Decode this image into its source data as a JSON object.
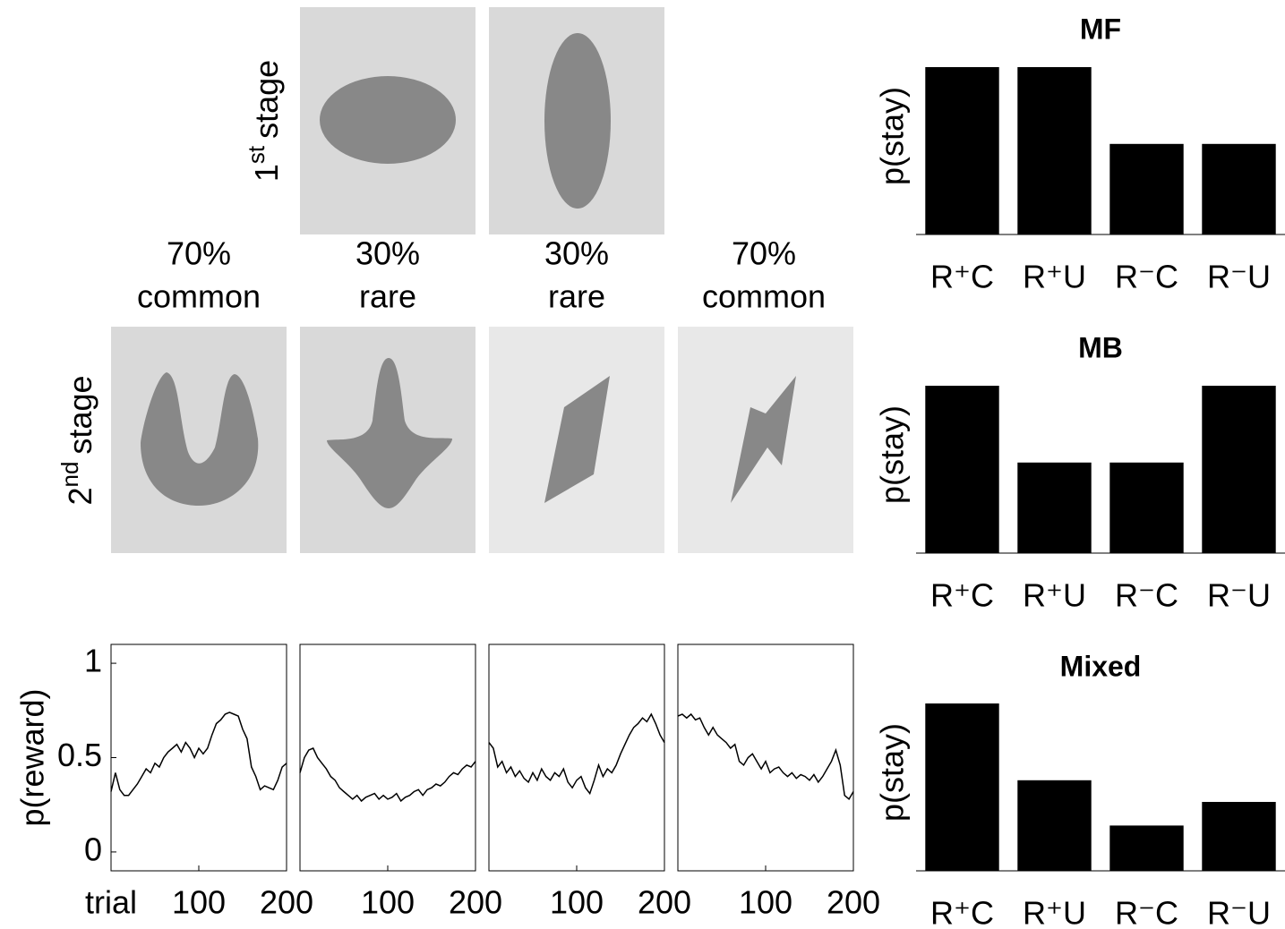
{
  "stages": [
    {
      "base": "1",
      "sup": "st",
      "text": "stage"
    },
    {
      "base": "2",
      "sup": "nd",
      "text": "stage"
    }
  ],
  "transitions": [
    {
      "percent": "70%",
      "label": "common"
    },
    {
      "percent": "30%",
      "label": "rare"
    },
    {
      "percent": "30%",
      "label": "rare"
    },
    {
      "percent": "70%",
      "label": "common"
    }
  ],
  "chart_data": [
    {
      "type": "line",
      "ylabel": "p(reward)",
      "xlabel": "trial",
      "x": [
        0,
        5,
        10,
        15,
        20,
        25,
        30,
        35,
        40,
        45,
        50,
        55,
        60,
        65,
        70,
        75,
        80,
        85,
        90,
        95,
        100,
        105,
        110,
        115,
        120,
        125,
        130,
        135,
        140,
        145,
        150,
        155,
        160,
        165,
        170,
        175,
        180,
        185,
        190,
        195,
        200
      ],
      "series": [
        {
          "color": "#000000",
          "values": [
            0.32,
            0.42,
            0.33,
            0.3,
            0.3,
            0.33,
            0.36,
            0.4,
            0.44,
            0.42,
            0.47,
            0.45,
            0.5,
            0.53,
            0.55,
            0.57,
            0.53,
            0.58,
            0.55,
            0.5,
            0.55,
            0.52,
            0.55,
            0.62,
            0.68,
            0.7,
            0.73,
            0.74,
            0.73,
            0.72,
            0.65,
            0.6,
            0.45,
            0.4,
            0.33,
            0.35,
            0.34,
            0.33,
            0.38,
            0.45,
            0.47
          ]
        }
      ],
      "xlim": [
        0,
        200
      ],
      "xticks": [
        100,
        200
      ],
      "ylim": [
        -0.1,
        1.1
      ],
      "yticks": [
        0,
        0.5,
        1
      ]
    },
    {
      "type": "line",
      "x": [
        0,
        5,
        10,
        15,
        20,
        25,
        30,
        35,
        40,
        45,
        50,
        55,
        60,
        65,
        70,
        75,
        80,
        85,
        90,
        95,
        100,
        105,
        110,
        115,
        120,
        125,
        130,
        135,
        140,
        145,
        150,
        155,
        160,
        165,
        170,
        175,
        180,
        185,
        190,
        195,
        200
      ],
      "series": [
        {
          "color": "#000000",
          "values": [
            0.42,
            0.5,
            0.54,
            0.55,
            0.5,
            0.47,
            0.44,
            0.4,
            0.38,
            0.34,
            0.32,
            0.3,
            0.28,
            0.3,
            0.27,
            0.29,
            0.3,
            0.31,
            0.28,
            0.3,
            0.28,
            0.29,
            0.31,
            0.27,
            0.29,
            0.3,
            0.32,
            0.33,
            0.3,
            0.33,
            0.34,
            0.36,
            0.35,
            0.37,
            0.4,
            0.42,
            0.41,
            0.44,
            0.46,
            0.45,
            0.48
          ]
        }
      ],
      "xlim": [
        0,
        200
      ],
      "xticks": [
        100,
        200
      ],
      "ylim": [
        -0.1,
        1.1
      ]
    },
    {
      "type": "line",
      "x": [
        0,
        5,
        10,
        15,
        20,
        25,
        30,
        35,
        40,
        45,
        50,
        55,
        60,
        65,
        70,
        75,
        80,
        85,
        90,
        95,
        100,
        105,
        110,
        115,
        120,
        125,
        130,
        135,
        140,
        145,
        150,
        155,
        160,
        165,
        170,
        175,
        180,
        185,
        190,
        195,
        200
      ],
      "series": [
        {
          "color": "#000000",
          "values": [
            0.58,
            0.55,
            0.45,
            0.48,
            0.42,
            0.45,
            0.4,
            0.43,
            0.39,
            0.37,
            0.42,
            0.38,
            0.44,
            0.4,
            0.38,
            0.42,
            0.4,
            0.44,
            0.37,
            0.34,
            0.38,
            0.4,
            0.34,
            0.31,
            0.38,
            0.46,
            0.4,
            0.44,
            0.42,
            0.46,
            0.52,
            0.57,
            0.62,
            0.66,
            0.68,
            0.71,
            0.69,
            0.73,
            0.68,
            0.62,
            0.58
          ]
        }
      ],
      "xlim": [
        0,
        200
      ],
      "xticks": [
        100,
        200
      ],
      "ylim": [
        -0.1,
        1.1
      ]
    },
    {
      "type": "line",
      "x": [
        0,
        5,
        10,
        15,
        20,
        25,
        30,
        35,
        40,
        45,
        50,
        55,
        60,
        65,
        70,
        75,
        80,
        85,
        90,
        95,
        100,
        105,
        110,
        115,
        120,
        125,
        130,
        135,
        140,
        145,
        150,
        155,
        160,
        165,
        170,
        175,
        180,
        185,
        190,
        195,
        200
      ],
      "series": [
        {
          "color": "#000000",
          "values": [
            0.72,
            0.73,
            0.71,
            0.73,
            0.7,
            0.71,
            0.66,
            0.62,
            0.66,
            0.62,
            0.6,
            0.58,
            0.55,
            0.57,
            0.48,
            0.46,
            0.5,
            0.52,
            0.48,
            0.44,
            0.48,
            0.42,
            0.44,
            0.45,
            0.42,
            0.4,
            0.42,
            0.39,
            0.41,
            0.4,
            0.38,
            0.41,
            0.37,
            0.4,
            0.44,
            0.48,
            0.54,
            0.46,
            0.3,
            0.28,
            0.32
          ]
        }
      ],
      "xlim": [
        0,
        200
      ],
      "xticks": [
        100,
        200
      ],
      "ylim": [
        -0.1,
        1.1
      ]
    },
    {
      "type": "bar",
      "title": "MF",
      "ylabel": "p(stay)",
      "categories": [
        "R⁺C",
        "R⁺U",
        "R⁻C",
        "R⁻U"
      ],
      "values": [
        0.85,
        0.85,
        0.46,
        0.46
      ],
      "color": "#000000",
      "ylim": [
        0,
        1
      ]
    },
    {
      "type": "bar",
      "title": "MB",
      "ylabel": "p(stay)",
      "categories": [
        "R⁺C",
        "R⁺U",
        "R⁻C",
        "R⁻U"
      ],
      "values": [
        0.85,
        0.46,
        0.46,
        0.85
      ],
      "color": "#000000",
      "ylim": [
        0,
        1
      ]
    },
    {
      "type": "bar",
      "title": "Mixed",
      "ylabel": "p(stay)",
      "categories": [
        "R⁺C",
        "R⁺U",
        "R⁻C",
        "R⁻U"
      ],
      "values": [
        0.85,
        0.46,
        0.23,
        0.35
      ],
      "color": "#000000",
      "ylim": [
        0,
        1
      ]
    }
  ]
}
